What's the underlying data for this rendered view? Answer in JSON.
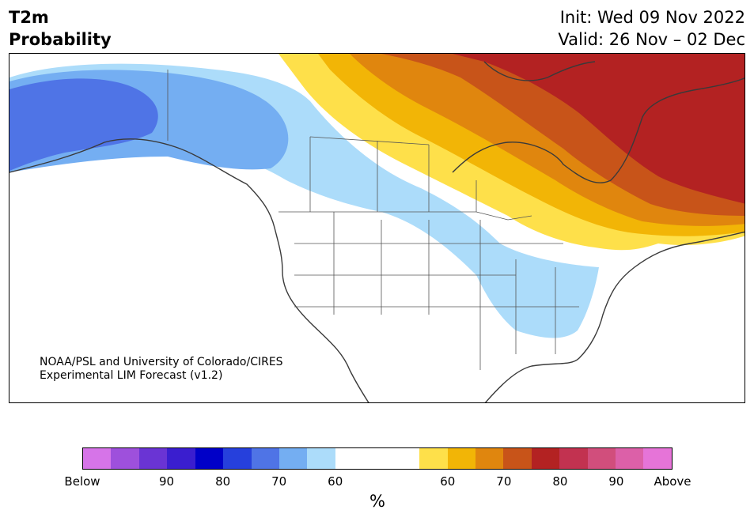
{
  "header": {
    "title_line1": "T2m",
    "title_line2": "Probability",
    "init": "Init: Wed 09 Nov 2022",
    "valid": "Valid: 26 Nov – 02 Dec"
  },
  "map": {
    "credit_line1": "NOAA/PSL and University of Colorado/CIRES",
    "credit_line2": "Experimental LIM Forecast (v1.2)"
  },
  "colorbar": {
    "below_colors": [
      "#d674e8",
      "#9e50dc",
      "#6a34d4",
      "#3a1ecf",
      "#0000c8",
      "#2640dc",
      "#4f74e6",
      "#74aef2",
      "#acdcfa"
    ],
    "neutral_color": "#ffffff",
    "above_colors": [
      "#fee04a",
      "#f2b506",
      "#e0860e",
      "#c85419",
      "#b32222",
      "#c23250",
      "#d14e7c",
      "#dc60a8",
      "#e674d8"
    ],
    "tick_labels": [
      "Below",
      "90",
      "80",
      "70",
      "60",
      "60",
      "70",
      "80",
      "90",
      "Above"
    ],
    "unit": "%"
  }
}
